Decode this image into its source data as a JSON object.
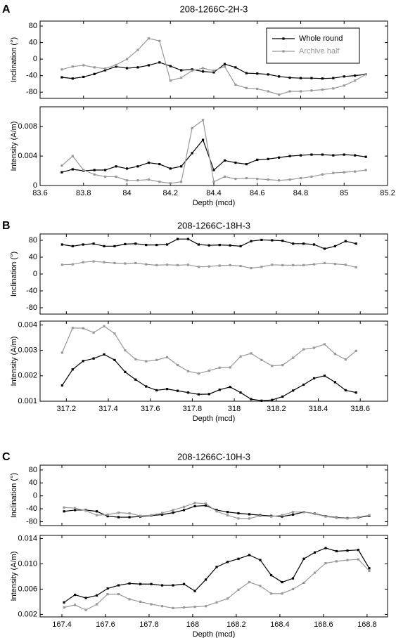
{
  "chart_data": [
    {
      "type": "line",
      "panel": "A",
      "title": "208-1266C-2H-3",
      "ylabel": "Inclination (°)",
      "legend": "upper right",
      "x": [
        83.7,
        83.75,
        83.8,
        83.85,
        83.9,
        83.95,
        84,
        84.05,
        84.1,
        84.15,
        84.2,
        84.25,
        84.3,
        84.35,
        84.4,
        84.45,
        84.5,
        84.55,
        84.6,
        84.65,
        84.7,
        84.75,
        84.8,
        84.85,
        84.9,
        84.95,
        85,
        85.05,
        85.1
      ],
      "xlim": [
        83.6,
        85.2
      ],
      "ylim": [
        -95,
        92
      ],
      "yticks": [
        80,
        40,
        0,
        -40,
        -80
      ],
      "series": [
        {
          "name": "Whole round",
          "color": "#000000",
          "values": [
            -44,
            -47,
            -43,
            -36,
            -27,
            -18,
            -22,
            -20,
            -15,
            -8,
            -17,
            -27,
            -25,
            -30,
            -32,
            -12,
            -20,
            -34,
            -35,
            -37,
            -42,
            -45,
            -46,
            -46,
            -47,
            -46,
            -42,
            -40,
            -37
          ]
        },
        {
          "name": "Archive half",
          "color": "#999999",
          "values": [
            -25,
            -18,
            -15,
            -20,
            -23,
            -14,
            0,
            22,
            50,
            44,
            -52,
            -45,
            -28,
            -22,
            -28,
            -18,
            -62,
            -70,
            -72,
            -78,
            -86,
            -78,
            -78,
            -76,
            -74,
            -71,
            -64,
            -52,
            -37
          ]
        }
      ]
    },
    {
      "type": "line",
      "ylabel": "Intensity (A/m)",
      "xlabel": "Depth (mcd)",
      "x": [
        83.7,
        83.75,
        83.8,
        83.85,
        83.9,
        83.95,
        84,
        84.05,
        84.1,
        84.15,
        84.2,
        84.25,
        84.3,
        84.35,
        84.4,
        84.45,
        84.5,
        84.55,
        84.6,
        84.65,
        84.7,
        84.75,
        84.8,
        84.85,
        84.9,
        84.95,
        85,
        85.05,
        85.1
      ],
      "xlim": [
        83.6,
        85.2
      ],
      "xticks": [
        83.6,
        83.8,
        84,
        84.2,
        84.4,
        84.6,
        84.8,
        85,
        85.2
      ],
      "ylim": [
        0,
        0.0107
      ],
      "yticks": [
        0,
        0.004,
        0.008
      ],
      "series": [
        {
          "color": "#000000",
          "values": [
            0.0018,
            0.0022,
            0.002,
            0.0021,
            0.0021,
            0.0026,
            0.0023,
            0.0026,
            0.0031,
            0.0029,
            0.0023,
            0.0026,
            0.0044,
            0.0062,
            0.0021,
            0.0034,
            0.0031,
            0.0029,
            0.0035,
            0.0036,
            0.0038,
            0.004,
            0.0041,
            0.0042,
            0.0042,
            0.0041,
            0.0042,
            0.0041,
            0.0039
          ]
        },
        {
          "color": "#999999",
          "values": [
            0.0027,
            0.004,
            0.0021,
            0.0015,
            0.0012,
            0.0012,
            0.0007,
            0.0007,
            0.0008,
            0.0005,
            0.0003,
            0.0005,
            0.0078,
            0.0089,
            0.0005,
            0.0012,
            0.0009,
            0.001,
            0.0009,
            0.0008,
            0.0007,
            0.0008,
            0.001,
            0.0012,
            0.0015,
            0.0017,
            0.0018,
            0.0019,
            0.0021
          ]
        }
      ]
    },
    {
      "type": "line",
      "panel": "B",
      "title": "208-1266C-18H-3",
      "ylabel": "Inclination (°)",
      "x": [
        317.18,
        317.23,
        317.28,
        317.33,
        317.38,
        317.43,
        317.48,
        317.53,
        317.58,
        317.63,
        317.68,
        317.73,
        317.78,
        317.83,
        317.88,
        317.93,
        317.98,
        318.03,
        318.08,
        318.13,
        318.18,
        318.23,
        318.28,
        318.33,
        318.38,
        318.43,
        318.48,
        318.53,
        318.58
      ],
      "xlim": [
        317.075,
        318.73
      ],
      "ylim": [
        -95,
        95
      ],
      "yticks": [
        80,
        40,
        0,
        -40,
        -80
      ],
      "series": [
        {
          "color": "#000000",
          "values": [
            70,
            66,
            70,
            72,
            66,
            66,
            71,
            72,
            69,
            69,
            70,
            83,
            83,
            70,
            68,
            69,
            68,
            66,
            78,
            81,
            80,
            79,
            72,
            72,
            70,
            60,
            66,
            78,
            72
          ]
        },
        {
          "color": "#999999",
          "values": [
            22,
            23,
            28,
            30,
            28,
            26,
            25,
            26,
            23,
            21,
            22,
            21,
            22,
            17,
            18,
            20,
            21,
            19,
            14,
            17,
            22,
            21,
            21,
            21,
            23,
            26,
            24,
            22,
            16
          ]
        }
      ]
    },
    {
      "type": "line",
      "ylabel": "Intensity (A/m)",
      "xlabel": "Depth (mcd)",
      "x": [
        317.18,
        317.23,
        317.28,
        317.33,
        317.38,
        317.43,
        317.48,
        317.53,
        317.58,
        317.63,
        317.68,
        317.73,
        317.78,
        317.83,
        317.88,
        317.93,
        317.98,
        318.03,
        318.08,
        318.13,
        318.18,
        318.23,
        318.28,
        318.33,
        318.38,
        318.43,
        318.48,
        318.53,
        318.58
      ],
      "xlim": [
        317.075,
        318.73
      ],
      "xticks": [
        317.2,
        317.4,
        317.6,
        317.8,
        318,
        318.2,
        318.4,
        318.6
      ],
      "ylim": [
        0.001,
        0.00415
      ],
      "yticks": [
        0.001,
        0.002,
        0.003,
        0.004
      ],
      "series": [
        {
          "color": "#000000",
          "values": [
            0.00162,
            0.00225,
            0.00258,
            0.00268,
            0.00284,
            0.00262,
            0.00215,
            0.00185,
            0.00158,
            0.00143,
            0.00148,
            0.00141,
            0.00134,
            0.00127,
            0.00128,
            0.00145,
            0.00156,
            0.00134,
            0.00108,
            0.00102,
            0.00105,
            0.00118,
            0.00142,
            0.00165,
            0.0019,
            0.002,
            0.00175,
            0.00143,
            0.00134
          ]
        },
        {
          "color": "#999999",
          "values": [
            0.00291,
            0.00388,
            0.00387,
            0.0037,
            0.00395,
            0.00366,
            0.003,
            0.00265,
            0.00257,
            0.00262,
            0.00273,
            0.00242,
            0.00218,
            0.00209,
            0.0022,
            0.00232,
            0.00233,
            0.00276,
            0.00288,
            0.00262,
            0.00239,
            0.00242,
            0.00271,
            0.00304,
            0.0031,
            0.00324,
            0.00286,
            0.00264,
            0.00298
          ]
        }
      ]
    },
    {
      "type": "line",
      "panel": "C",
      "title": "208-1266C-10H-3",
      "ylabel": "Inclination (°)",
      "x": [
        167.41,
        167.46,
        167.51,
        167.56,
        167.61,
        167.66,
        167.71,
        167.76,
        167.81,
        167.86,
        167.91,
        167.96,
        168.01,
        168.06,
        168.11,
        168.16,
        168.21,
        168.26,
        168.31,
        168.36,
        168.41,
        168.46,
        168.51,
        168.56,
        168.61,
        168.66,
        168.71,
        168.76,
        168.81
      ],
      "xlim": [
        167.3,
        168.894
      ],
      "ylim": [
        -92,
        95
      ],
      "yticks": [
        80,
        40,
        0,
        -40,
        -80
      ],
      "series": [
        {
          "color": "#000000",
          "values": [
            -48,
            -44,
            -44,
            -48,
            -63,
            -66,
            -66,
            -64,
            -61,
            -58,
            -52,
            -44,
            -32,
            -30,
            -44,
            -50,
            -54,
            -57,
            -60,
            -62,
            -64,
            -58,
            -50,
            -55,
            -63,
            -67,
            -69,
            -67,
            -62
          ]
        },
        {
          "color": "#999999",
          "values": [
            -36,
            -38,
            -46,
            -60,
            -58,
            -52,
            -54,
            -62,
            -60,
            -53,
            -44,
            -34,
            -22,
            -24,
            -48,
            -60,
            -70,
            -70,
            -62,
            -64,
            -60,
            -50,
            -50,
            -56,
            -64,
            -68,
            -70,
            -66,
            -60
          ]
        }
      ]
    },
    {
      "type": "line",
      "ylabel": "Intensity (A/m)",
      "xlabel": "Depth (mcd)",
      "x": [
        167.41,
        167.46,
        167.51,
        167.56,
        167.61,
        167.66,
        167.71,
        167.76,
        167.81,
        167.86,
        167.91,
        167.96,
        168.01,
        168.06,
        168.11,
        168.16,
        168.21,
        168.26,
        168.31,
        168.36,
        168.41,
        168.46,
        168.51,
        168.56,
        168.61,
        168.66,
        168.71,
        168.76,
        168.81
      ],
      "xlim": [
        167.3,
        168.894
      ],
      "xticks": [
        167.4,
        167.6,
        167.8,
        168,
        168.2,
        168.4,
        168.6,
        168.8
      ],
      "ylim": [
        0.0016,
        0.0145
      ],
      "yticks": [
        0.002,
        0.006,
        {
          "value": 0.01,
          "label": "0.010"
        },
        0.014
      ],
      "series": [
        {
          "color": "#000000",
          "values": [
            0.0039,
            0.0051,
            0.0046,
            0.005,
            0.0061,
            0.0066,
            0.0069,
            0.0068,
            0.0068,
            0.0066,
            0.0066,
            0.0068,
            0.0057,
            0.0075,
            0.0095,
            0.0103,
            0.0108,
            0.0114,
            0.0106,
            0.0082,
            0.0071,
            0.0077,
            0.0108,
            0.0118,
            0.0125,
            0.012,
            0.0121,
            0.0122,
            0.0093
          ]
        },
        {
          "color": "#999999",
          "values": [
            0.0031,
            0.0035,
            0.0027,
            0.0036,
            0.0052,
            0.0052,
            0.0044,
            0.004,
            0.0036,
            0.0033,
            0.003,
            0.0031,
            0.0032,
            0.0033,
            0.0039,
            0.0045,
            0.0059,
            0.0071,
            0.0065,
            0.0053,
            0.0053,
            0.006,
            0.007,
            0.0086,
            0.0101,
            0.0104,
            0.0106,
            0.0107,
            0.0089
          ]
        }
      ]
    }
  ]
}
